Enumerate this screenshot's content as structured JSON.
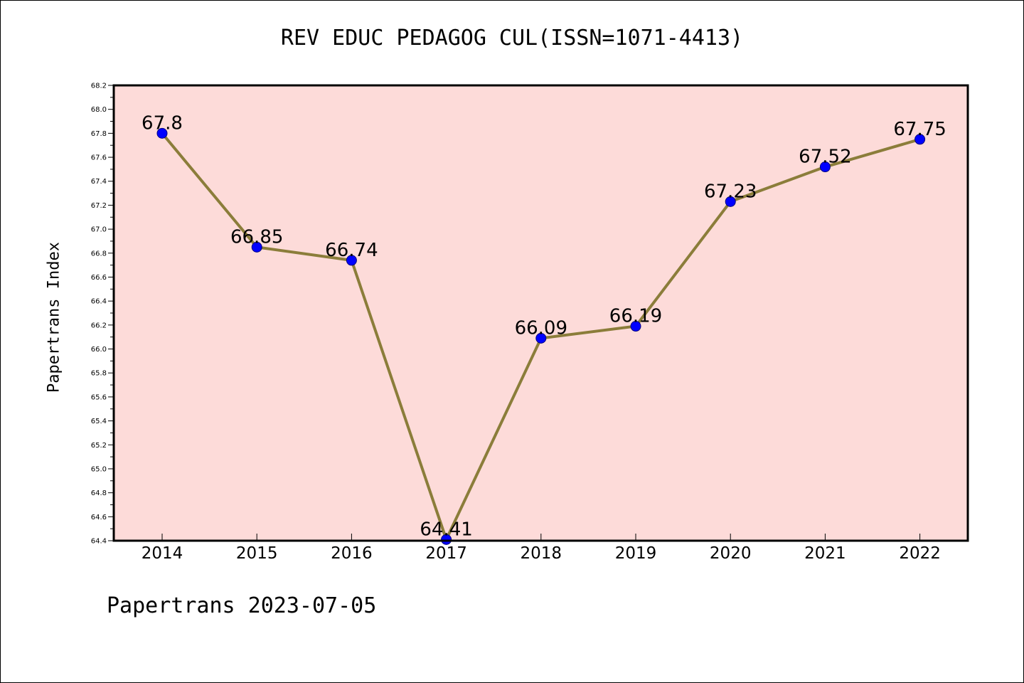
{
  "chart_data": {
    "type": "line",
    "title": "REV EDUC PEDAGOG CUL(ISSN=1071-4413)",
    "ylabel": "Papertrans Index",
    "xlabel": "",
    "footer": "Papertrans 2023-07-05",
    "x": [
      "2014",
      "2015",
      "2016",
      "2017",
      "2018",
      "2019",
      "2020",
      "2021",
      "2022"
    ],
    "series": [
      {
        "values": [
          67.8,
          66.85,
          66.74,
          64.41,
          66.09,
          66.19,
          67.23,
          67.52,
          67.75
        ]
      }
    ],
    "data_labels": [
      "67.8",
      "66.85",
      "66.74",
      "64.41",
      "66.09",
      "66.19",
      "67.23",
      "67.52",
      "67.75"
    ],
    "ylim": [
      64.4,
      68.2
    ],
    "y_ticks": [
      "64.4",
      "64.6",
      "64.8",
      "65.0",
      "65.2",
      "65.4",
      "65.6",
      "65.8",
      "66.0",
      "66.2",
      "66.4",
      "66.6",
      "66.8",
      "67.0",
      "67.2",
      "67.4",
      "67.6",
      "67.8",
      "68.0",
      "68.2"
    ],
    "colors": {
      "plot_background": "#fddbd9",
      "line": "#8b7d3a",
      "marker": "#0000ff",
      "marker_edge": "#000080"
    },
    "grid": false,
    "legend": "none"
  }
}
